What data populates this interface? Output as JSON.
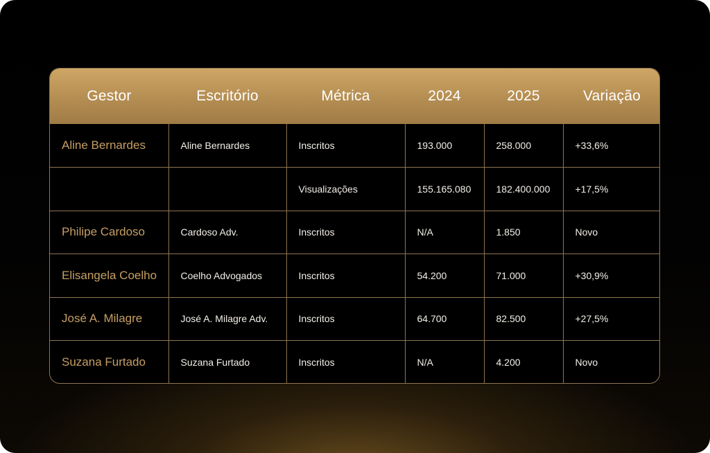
{
  "table": {
    "headers": {
      "gestor": "Gestor",
      "escritorio": "Escritório",
      "metrica": "Métrica",
      "y2024": "2024",
      "y2025": "2025",
      "variacao": "Variação"
    },
    "rows": [
      {
        "gestor": "Aline Bernardes",
        "escritorio": "Aline Bernardes",
        "metrica": "Inscritos",
        "y2024": "193.000",
        "y2025": "258.000",
        "variacao": "+33,6%"
      },
      {
        "gestor": "",
        "escritorio": "",
        "metrica": "Visualizações",
        "y2024": "155.165.080",
        "y2025": "182.400.000",
        "variacao": "+17,5%"
      },
      {
        "gestor": "Philipe Cardoso",
        "escritorio": "Cardoso Adv.",
        "metrica": "Inscritos",
        "y2024": "N/A",
        "y2025": "1.850",
        "variacao": "Novo"
      },
      {
        "gestor": "Elisangela Coelho",
        "escritorio": "Coelho Advogados",
        "metrica": "Inscritos",
        "y2024": "54.200",
        "y2025": "71.000",
        "variacao": "+30,9%"
      },
      {
        "gestor": "José A. Milagre",
        "escritorio": "José A. Milagre Adv.",
        "metrica": "Inscritos",
        "y2024": "64.700",
        "y2025": "82.500",
        "variacao": "+27,5%"
      },
      {
        "gestor": "Suzana Furtado",
        "escritorio": "Suzana Furtado",
        "metrica": "Inscritos",
        "y2024": "N/A",
        "y2025": "4.200",
        "variacao": "Novo"
      }
    ]
  },
  "colors": {
    "header_gold": "#c09858",
    "accent_name": "#c79f64",
    "border": "#8f7650",
    "background": "#000000"
  }
}
